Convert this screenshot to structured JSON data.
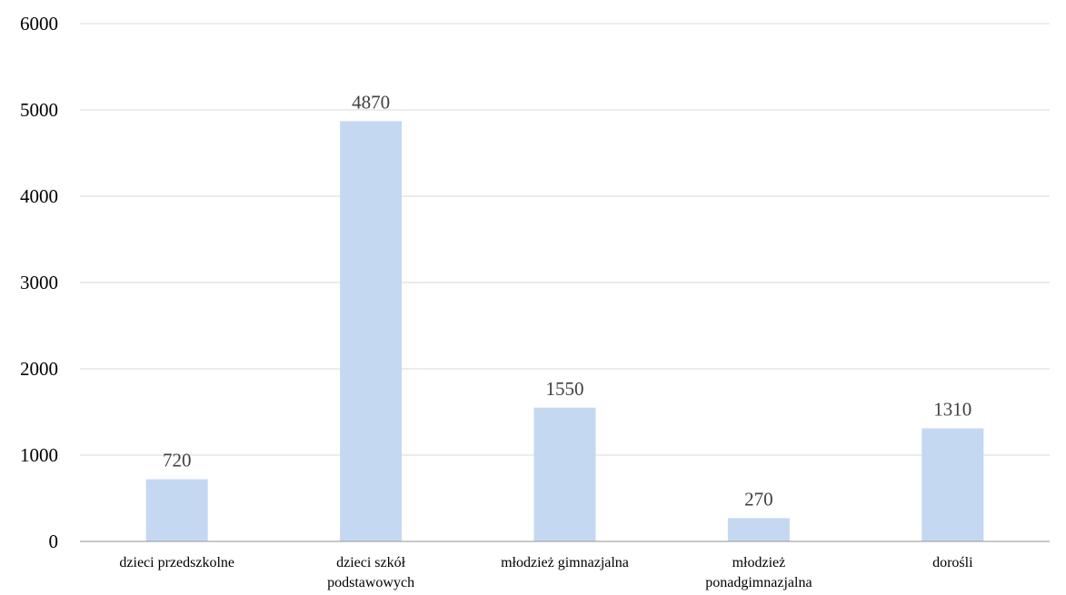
{
  "chart_data": {
    "type": "bar",
    "title": "",
    "xlabel": "",
    "ylabel": "",
    "ylim": [
      0,
      6000
    ],
    "yticks": [
      0,
      1000,
      2000,
      3000,
      4000,
      5000,
      6000
    ],
    "grid": true,
    "legend": "none",
    "bar_color": "#c5d8f1",
    "grid_color": "#d9d9d9",
    "axis_color": "#a6a6a6",
    "label_color": "#404040",
    "categories": [
      [
        "dzieci przedszkolne"
      ],
      [
        "dzieci szkół",
        "podstawowych"
      ],
      [
        "młodzież gimnazjalna"
      ],
      [
        "młodzież",
        "ponadgimnazjalna"
      ],
      [
        "dorośli"
      ]
    ],
    "values": [
      720,
      4870,
      1550,
      270,
      1310
    ]
  }
}
